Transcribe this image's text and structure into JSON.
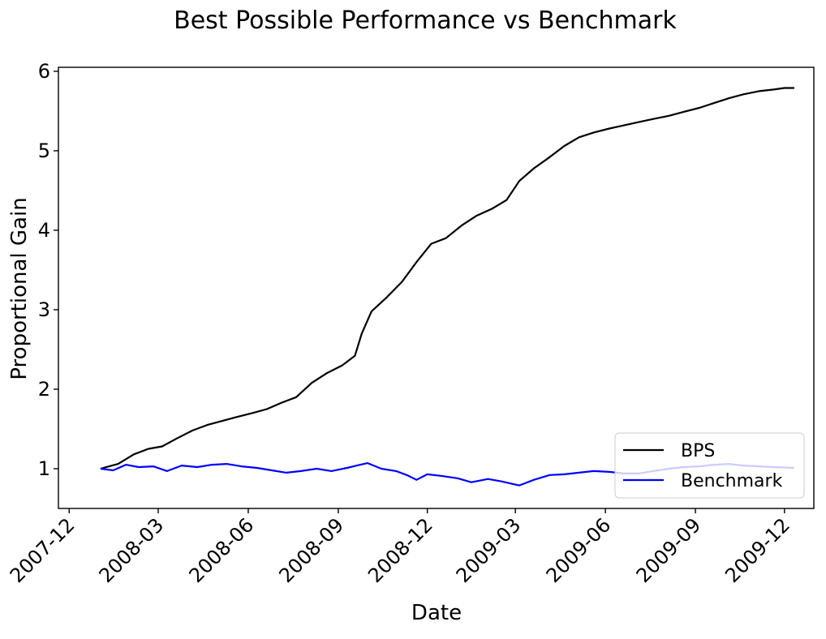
{
  "chart_data": {
    "type": "line",
    "title": "Best Possible Performance vs Benchmark",
    "xlabel": "Date",
    "ylabel": "Proportional Gain",
    "xlim": [
      "2007-11-20",
      "2009-12-31"
    ],
    "ylim": [
      0.5,
      6.05
    ],
    "x_ticks": [
      "2007-12",
      "2008-03",
      "2008-06",
      "2008-09",
      "2008-12",
      "2009-03",
      "2009-06",
      "2009-09",
      "2009-12"
    ],
    "y_ticks": [
      1,
      2,
      3,
      4,
      5,
      6
    ],
    "grid": false,
    "legend_location": "lower right",
    "series": [
      {
        "name": "BPS",
        "color": "#000000",
        "points": [
          [
            "2008-01-02",
            1.0
          ],
          [
            "2008-01-20",
            1.06
          ],
          [
            "2008-02-05",
            1.18
          ],
          [
            "2008-02-20",
            1.25
          ],
          [
            "2008-03-05",
            1.28
          ],
          [
            "2008-03-20",
            1.38
          ],
          [
            "2008-04-05",
            1.48
          ],
          [
            "2008-04-20",
            1.55
          ],
          [
            "2008-05-05",
            1.6
          ],
          [
            "2008-05-20",
            1.65
          ],
          [
            "2008-06-05",
            1.7
          ],
          [
            "2008-06-20",
            1.75
          ],
          [
            "2008-07-05",
            1.83
          ],
          [
            "2008-07-20",
            1.9
          ],
          [
            "2008-08-05",
            2.08
          ],
          [
            "2008-08-20",
            2.2
          ],
          [
            "2008-09-05",
            2.3
          ],
          [
            "2008-09-18",
            2.42
          ],
          [
            "2008-09-25",
            2.7
          ],
          [
            "2008-10-05",
            2.98
          ],
          [
            "2008-10-20",
            3.15
          ],
          [
            "2008-11-05",
            3.35
          ],
          [
            "2008-11-20",
            3.6
          ],
          [
            "2008-12-05",
            3.83
          ],
          [
            "2008-12-20",
            3.9
          ],
          [
            "2009-01-05",
            4.06
          ],
          [
            "2009-01-20",
            4.18
          ],
          [
            "2009-02-05",
            4.27
          ],
          [
            "2009-02-20",
            4.38
          ],
          [
            "2009-03-05",
            4.62
          ],
          [
            "2009-03-20",
            4.78
          ],
          [
            "2009-04-05",
            4.92
          ],
          [
            "2009-04-20",
            5.06
          ],
          [
            "2009-05-05",
            5.17
          ],
          [
            "2009-05-20",
            5.23
          ],
          [
            "2009-06-05",
            5.28
          ],
          [
            "2009-06-20",
            5.32
          ],
          [
            "2009-07-05",
            5.36
          ],
          [
            "2009-07-20",
            5.4
          ],
          [
            "2009-08-05",
            5.44
          ],
          [
            "2009-08-20",
            5.49
          ],
          [
            "2009-09-05",
            5.54
          ],
          [
            "2009-09-20",
            5.6
          ],
          [
            "2009-10-05",
            5.66
          ],
          [
            "2009-10-20",
            5.71
          ],
          [
            "2009-11-05",
            5.75
          ],
          [
            "2009-11-20",
            5.77
          ],
          [
            "2009-12-01",
            5.79
          ],
          [
            "2009-12-11",
            5.79
          ]
        ]
      },
      {
        "name": "Benchmark",
        "color": "#0000ff",
        "points": [
          [
            "2008-01-02",
            1.0
          ],
          [
            "2008-01-15",
            0.98
          ],
          [
            "2008-01-28",
            1.05
          ],
          [
            "2008-02-10",
            1.02
          ],
          [
            "2008-02-25",
            1.03
          ],
          [
            "2008-03-10",
            0.97
          ],
          [
            "2008-03-25",
            1.04
          ],
          [
            "2008-04-10",
            1.02
          ],
          [
            "2008-04-25",
            1.05
          ],
          [
            "2008-05-10",
            1.06
          ],
          [
            "2008-05-25",
            1.03
          ],
          [
            "2008-06-10",
            1.01
          ],
          [
            "2008-06-25",
            0.98
          ],
          [
            "2008-07-10",
            0.95
          ],
          [
            "2008-07-25",
            0.97
          ],
          [
            "2008-08-10",
            1.0
          ],
          [
            "2008-08-25",
            0.97
          ],
          [
            "2008-09-10",
            1.01
          ],
          [
            "2008-09-20",
            1.04
          ],
          [
            "2008-10-01",
            1.07
          ],
          [
            "2008-10-15",
            1.0
          ],
          [
            "2008-10-30",
            0.97
          ],
          [
            "2008-11-10",
            0.92
          ],
          [
            "2008-11-20",
            0.86
          ],
          [
            "2008-12-01",
            0.93
          ],
          [
            "2008-12-15",
            0.91
          ],
          [
            "2009-01-01",
            0.88
          ],
          [
            "2009-01-15",
            0.83
          ],
          [
            "2009-02-01",
            0.87
          ],
          [
            "2009-02-15",
            0.84
          ],
          [
            "2009-03-05",
            0.79
          ],
          [
            "2009-03-20",
            0.86
          ],
          [
            "2009-04-05",
            0.92
          ],
          [
            "2009-04-20",
            0.93
          ],
          [
            "2009-05-05",
            0.95
          ],
          [
            "2009-05-20",
            0.97
          ],
          [
            "2009-06-05",
            0.96
          ],
          [
            "2009-06-20",
            0.94
          ],
          [
            "2009-07-05",
            0.94
          ],
          [
            "2009-07-20",
            0.97
          ],
          [
            "2009-08-05",
            1.0
          ],
          [
            "2009-08-20",
            1.02
          ],
          [
            "2009-09-05",
            1.03
          ],
          [
            "2009-09-20",
            1.05
          ],
          [
            "2009-10-05",
            1.06
          ],
          [
            "2009-10-20",
            1.04
          ],
          [
            "2009-11-05",
            1.03
          ],
          [
            "2009-11-20",
            1.02
          ],
          [
            "2009-12-11",
            1.01
          ]
        ]
      }
    ]
  }
}
